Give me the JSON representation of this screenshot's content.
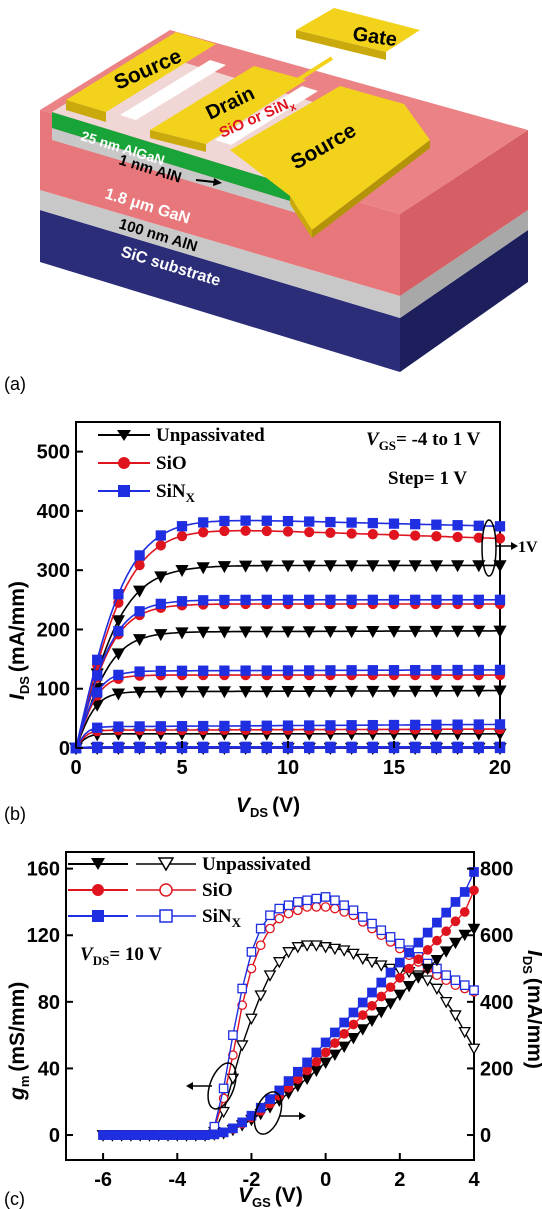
{
  "panel_a": {
    "panel_label": "(a)",
    "labels": {
      "gate": "Gate",
      "source_left": "Source",
      "drain": "Drain",
      "source_right": "Source",
      "passivation": "SiO or SiN",
      "passivation_sub": "x",
      "algan": "25 nm AlGaN",
      "aln_thin": "1 nm AlN",
      "gan": "1.8 μm GaN",
      "aln_thick": "100 nm AlN",
      "substrate": "SiC substrate"
    },
    "colors": {
      "metal": "#f2d21a",
      "metal_dark": "#c9a90c",
      "gan": "#e8777b",
      "algan": "#18a438",
      "aln": "#c8c8c8",
      "sic": "#2b2d78",
      "passivation": "#ffffff"
    }
  },
  "chart_data": [
    {
      "panel_label": "(b)",
      "type": "line",
      "xlabel": "V",
      "xlabel_sub": "DS",
      "xlabel_unit": "(V)",
      "ylabel": "I",
      "ylabel_sub": "DS",
      "ylabel_unit": "(mA/mm)",
      "xlim": [
        0,
        20
      ],
      "ylim": [
        0,
        550
      ],
      "xticks": [
        0,
        5,
        10,
        15,
        20
      ],
      "yticks": [
        0,
        100,
        200,
        300,
        400,
        500
      ],
      "annotation_vgs": "V",
      "annotation_vgs_sub": "GS",
      "annotation_vgs_rest": "= -4 to 1 V",
      "annotation_step": "Step= 1 V",
      "annotation_1v": "1V",
      "legend": [
        {
          "name": "Unpassivated",
          "color": "#000000",
          "marker": "triangle-down"
        },
        {
          "name": "SiO",
          "color": "#e0141e",
          "marker": "circle"
        },
        {
          "name": "SiN",
          "name_sub": "X",
          "color": "#1f2ee0",
          "marker": "square"
        }
      ],
      "vds": [
        0,
        0.5,
        1,
        1.5,
        2,
        2.5,
        3,
        3.5,
        4,
        4.5,
        5,
        5.5,
        6,
        6.5,
        7,
        7.5,
        8,
        8.5,
        9,
        9.5,
        10,
        10.5,
        11,
        11.5,
        12,
        12.5,
        13,
        13.5,
        14,
        14.5,
        15,
        15.5,
        16,
        16.5,
        17,
        17.5,
        18,
        18.5,
        19,
        19.5,
        20
      ],
      "series": [
        {
          "name": "Unpassivated",
          "color": "#000000",
          "marker": "triangle-down",
          "curves": [
            {
              "vgs": 1,
              "isat": 308,
              "vk": 4.2,
              "slope": 0
            },
            {
              "vgs": 0,
              "isat": 196,
              "vk": 3.2,
              "slope": 0.1
            },
            {
              "vgs": -1,
              "isat": 95,
              "vk": 1.8,
              "slope": 0.1
            },
            {
              "vgs": -2,
              "isat": 24,
              "vk": 1.0,
              "slope": 0
            },
            {
              "vgs": -3,
              "isat": 0,
              "vk": 1,
              "slope": 0
            },
            {
              "vgs": -4,
              "isat": 0,
              "vk": 1,
              "slope": 0
            }
          ]
        },
        {
          "name": "SiO",
          "color": "#e0141e",
          "marker": "circle",
          "curves": [
            {
              "vgs": 1,
              "isat": 372,
              "vk": 4.6,
              "slope": -1.2
            },
            {
              "vgs": 0,
              "isat": 243,
              "vk": 3.4,
              "slope": 0
            },
            {
              "vgs": -1,
              "isat": 123,
              "vk": 2.0,
              "slope": 0
            },
            {
              "vgs": -2,
              "isat": 30,
              "vk": 1.0,
              "slope": 0.1
            },
            {
              "vgs": -3,
              "isat": 1,
              "vk": 1,
              "slope": 0
            },
            {
              "vgs": -4,
              "isat": 0,
              "vk": 1,
              "slope": 0
            }
          ]
        },
        {
          "name": "SiNX",
          "color": "#1f2ee0",
          "marker": "square",
          "curves": [
            {
              "vgs": 1,
              "isat": 388,
              "vk": 4.5,
              "slope": -0.9
            },
            {
              "vgs": 0,
              "isat": 250,
              "vk": 3.4,
              "slope": 0
            },
            {
              "vgs": -1,
              "isat": 130,
              "vk": 2.0,
              "slope": 0.1
            },
            {
              "vgs": -2,
              "isat": 36,
              "vk": 1.0,
              "slope": 0.2
            },
            {
              "vgs": -3,
              "isat": 2,
              "vk": 1,
              "slope": 0
            },
            {
              "vgs": -4,
              "isat": 0,
              "vk": 1,
              "slope": 0
            }
          ]
        }
      ]
    },
    {
      "panel_label": "(c)",
      "type": "line",
      "xlabel": "V",
      "xlabel_sub": "GS",
      "xlabel_unit": "(V)",
      "ylabel": "g",
      "ylabel_sub": "m",
      "ylabel_unit": "(mS/mm)",
      "y2label": "I",
      "y2label_sub": "DS",
      "y2label_unit": "(mA/mm)",
      "xlim": [
        -7,
        4
      ],
      "ylim": [
        -15,
        170
      ],
      "y2lim": [
        -75,
        850
      ],
      "xticks": [
        -6,
        -4,
        -2,
        0,
        2,
        4
      ],
      "yticks": [
        0,
        40,
        80,
        120,
        160
      ],
      "y2ticks": [
        0,
        200,
        400,
        600,
        800
      ],
      "annotation_vds": "V",
      "annotation_vds_sub": "DS",
      "annotation_vds_rest": "= 10 V",
      "legend": [
        {
          "name": "Unpassivated",
          "color": "#000000",
          "marker": "triangle-down"
        },
        {
          "name": "SiO",
          "color": "#e0141e",
          "marker": "circle"
        },
        {
          "name": "SiN",
          "name_sub": "X",
          "color": "#1f2ee0",
          "marker": "square"
        }
      ],
      "vgs": [
        -6,
        -5.75,
        -5.5,
        -5.25,
        -5,
        -4.75,
        -4.5,
        -4.25,
        -4,
        -3.75,
        -3.5,
        -3.25,
        -3,
        -2.75,
        -2.5,
        -2.25,
        -2,
        -1.75,
        -1.5,
        -1.25,
        -1,
        -0.75,
        -0.5,
        -0.25,
        0,
        0.25,
        0.5,
        0.75,
        1,
        1.25,
        1.5,
        1.75,
        2,
        2.25,
        2.5,
        2.75,
        3,
        3.25,
        3.5,
        3.75,
        4
      ],
      "series": [
        {
          "name": "Unpassivated gm",
          "color": "#000000",
          "marker": "triangle-down",
          "filled": false,
          "axis": "left",
          "values": [
            0,
            0,
            0,
            0,
            0,
            0,
            0,
            0,
            0,
            0,
            0,
            0,
            2,
            14,
            34,
            54,
            70,
            84,
            96,
            104,
            110,
            113,
            114,
            114,
            113,
            112,
            111,
            109,
            106,
            104,
            102,
            100,
            99,
            98,
            96,
            93,
            88,
            80,
            72,
            62,
            52
          ]
        },
        {
          "name": "SiO gm",
          "color": "#e0141e",
          "marker": "circle",
          "filled": false,
          "axis": "left",
          "values": [
            0,
            0,
            0,
            0,
            0,
            0,
            0,
            0,
            0,
            0,
            0,
            0,
            4,
            22,
            48,
            78,
            100,
            114,
            124,
            130,
            133,
            135,
            137,
            137,
            137,
            136,
            134,
            132,
            128,
            124,
            120,
            116,
            112,
            108,
            104,
            100,
            96,
            93,
            90,
            88,
            86
          ]
        },
        {
          "name": "SiNX gm",
          "color": "#1f2ee0",
          "marker": "square",
          "filled": false,
          "axis": "left",
          "values": [
            0,
            0,
            0,
            0,
            0,
            0,
            0,
            0,
            0,
            0,
            0,
            0,
            5,
            28,
            60,
            88,
            110,
            124,
            132,
            136,
            138,
            140,
            141,
            142,
            143,
            141,
            138,
            135,
            131,
            127,
            123,
            119,
            115,
            111,
            107,
            103,
            100,
            96,
            93,
            90,
            87
          ]
        },
        {
          "name": "Unpassivated IDS",
          "color": "#000000",
          "marker": "triangle-down",
          "filled": true,
          "axis": "right",
          "values": [
            0,
            0,
            0,
            0,
            0,
            0,
            0,
            0,
            0,
            0,
            0,
            0,
            2,
            6,
            16,
            30,
            46,
            64,
            84,
            104,
            126,
            148,
            170,
            194,
            218,
            242,
            266,
            292,
            318,
            344,
            370,
            396,
            422,
            448,
            474,
            500,
            526,
            552,
            578,
            602,
            620
          ]
        },
        {
          "name": "SiO IDS",
          "color": "#e0141e",
          "marker": "circle",
          "filled": true,
          "axis": "right",
          "values": [
            0,
            0,
            0,
            0,
            0,
            0,
            0,
            0,
            0,
            0,
            0,
            0,
            2,
            7,
            18,
            34,
            52,
            72,
            94,
            118,
            142,
            168,
            194,
            220,
            248,
            276,
            304,
            332,
            360,
            388,
            416,
            444,
            472,
            500,
            528,
            556,
            584,
            612,
            642,
            670,
            735
          ]
        },
        {
          "name": "SiNX IDS",
          "color": "#1f2ee0",
          "marker": "square",
          "filled": true,
          "axis": "right",
          "values": [
            0,
            0,
            0,
            0,
            0,
            0,
            0,
            0,
            0,
            0,
            0,
            0,
            2,
            8,
            20,
            38,
            58,
            82,
            108,
            134,
            162,
            190,
            218,
            248,
            278,
            308,
            338,
            368,
            398,
            428,
            458,
            488,
            518,
            548,
            578,
            608,
            638,
            668,
            700,
            730,
            790
          ]
        }
      ]
    }
  ]
}
